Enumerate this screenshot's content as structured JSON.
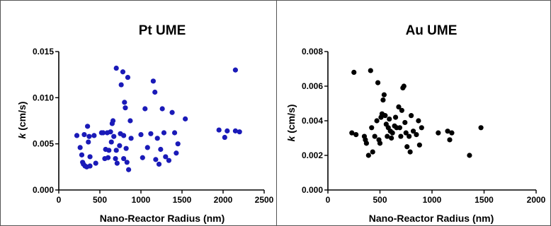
{
  "chart_data": [
    {
      "type": "scatter",
      "title": "Pt UME",
      "xlabel": "Nano-Reactor Radius (nm)",
      "ylabel_italic": "k",
      "ylabel_rest": " (cm/s)",
      "xlim": [
        0,
        2500
      ],
      "ylim": [
        0,
        0.015
      ],
      "xticks": [
        0,
        500,
        1000,
        1500,
        2000,
        2500
      ],
      "xtick_labels": [
        "0",
        "500",
        "1000",
        "1500",
        "2000",
        "2500"
      ],
      "yticks": [
        0,
        0.005,
        0.01,
        0.015
      ],
      "ytick_labels": [
        "0.000",
        "0.005",
        "0.010",
        "0.015"
      ],
      "marker_color": "#1a1ab8",
      "points": [
        {
          "x": 220,
          "y": 0.0059
        },
        {
          "x": 260,
          "y": 0.0046
        },
        {
          "x": 280,
          "y": 0.0038
        },
        {
          "x": 290,
          "y": 0.003
        },
        {
          "x": 300,
          "y": 0.0028
        },
        {
          "x": 310,
          "y": 0.006
        },
        {
          "x": 320,
          "y": 0.0026
        },
        {
          "x": 340,
          "y": 0.0025
        },
        {
          "x": 350,
          "y": 0.0069
        },
        {
          "x": 360,
          "y": 0.0052
        },
        {
          "x": 370,
          "y": 0.0058
        },
        {
          "x": 380,
          "y": 0.0036
        },
        {
          "x": 380,
          "y": 0.0026
        },
        {
          "x": 430,
          "y": 0.0059
        },
        {
          "x": 450,
          "y": 0.0029
        },
        {
          "x": 520,
          "y": 0.0062
        },
        {
          "x": 540,
          "y": 0.0062
        },
        {
          "x": 560,
          "y": 0.0034
        },
        {
          "x": 570,
          "y": 0.0044
        },
        {
          "x": 590,
          "y": 0.0062
        },
        {
          "x": 600,
          "y": 0.0035
        },
        {
          "x": 610,
          "y": 0.0043
        },
        {
          "x": 630,
          "y": 0.0063
        },
        {
          "x": 640,
          "y": 0.0052
        },
        {
          "x": 650,
          "y": 0.0072
        },
        {
          "x": 660,
          "y": 0.0075
        },
        {
          "x": 670,
          "y": 0.0058
        },
        {
          "x": 690,
          "y": 0.0034
        },
        {
          "x": 700,
          "y": 0.0043
        },
        {
          "x": 700,
          "y": 0.0132
        },
        {
          "x": 710,
          "y": 0.0029
        },
        {
          "x": 740,
          "y": 0.0048
        },
        {
          "x": 750,
          "y": 0.0061
        },
        {
          "x": 760,
          "y": 0.0114
        },
        {
          "x": 780,
          "y": 0.0128
        },
        {
          "x": 790,
          "y": 0.0059
        },
        {
          "x": 790,
          "y": 0.0034
        },
        {
          "x": 800,
          "y": 0.0095
        },
        {
          "x": 810,
          "y": 0.0089
        },
        {
          "x": 820,
          "y": 0.0045
        },
        {
          "x": 830,
          "y": 0.003
        },
        {
          "x": 840,
          "y": 0.0122
        },
        {
          "x": 850,
          "y": 0.0022
        },
        {
          "x": 870,
          "y": 0.0075
        },
        {
          "x": 880,
          "y": 0.0056
        },
        {
          "x": 1000,
          "y": 0.006
        },
        {
          "x": 1020,
          "y": 0.0035
        },
        {
          "x": 1050,
          "y": 0.0088
        },
        {
          "x": 1080,
          "y": 0.0046
        },
        {
          "x": 1120,
          "y": 0.0061
        },
        {
          "x": 1150,
          "y": 0.0118
        },
        {
          "x": 1170,
          "y": 0.0106
        },
        {
          "x": 1180,
          "y": 0.0033
        },
        {
          "x": 1200,
          "y": 0.0056
        },
        {
          "x": 1220,
          "y": 0.0028
        },
        {
          "x": 1240,
          "y": 0.0044
        },
        {
          "x": 1260,
          "y": 0.0088
        },
        {
          "x": 1280,
          "y": 0.0062
        },
        {
          "x": 1300,
          "y": 0.0036
        },
        {
          "x": 1340,
          "y": 0.0032
        },
        {
          "x": 1380,
          "y": 0.0084
        },
        {
          "x": 1410,
          "y": 0.0062
        },
        {
          "x": 1430,
          "y": 0.004
        },
        {
          "x": 1450,
          "y": 0.005
        },
        {
          "x": 1540,
          "y": 0.0077
        },
        {
          "x": 1950,
          "y": 0.0065
        },
        {
          "x": 2020,
          "y": 0.0057
        },
        {
          "x": 2050,
          "y": 0.0064
        },
        {
          "x": 2150,
          "y": 0.013
        },
        {
          "x": 2150,
          "y": 0.0064
        },
        {
          "x": 2200,
          "y": 0.0063
        }
      ]
    },
    {
      "type": "scatter",
      "title": "Au UME",
      "xlabel": "Nano-Reactor Radius (nm)",
      "ylabel_italic": "k",
      "ylabel_rest": " (cm/s)",
      "xlim": [
        0,
        2000
      ],
      "ylim": [
        0,
        0.008
      ],
      "xticks": [
        0,
        500,
        1000,
        1500,
        2000
      ],
      "xtick_labels": [
        "0",
        "500",
        "1000",
        "1500",
        "2000"
      ],
      "yticks": [
        0,
        0.002,
        0.004,
        0.006,
        0.008
      ],
      "ytick_labels": [
        "0.000",
        "0.002",
        "0.004",
        "0.006",
        "0.008"
      ],
      "marker_color": "#000000",
      "points": [
        {
          "x": 230,
          "y": 0.0033
        },
        {
          "x": 250,
          "y": 0.0068
        },
        {
          "x": 270,
          "y": 0.0032
        },
        {
          "x": 350,
          "y": 0.0031
        },
        {
          "x": 360,
          "y": 0.0029
        },
        {
          "x": 370,
          "y": 0.0027
        },
        {
          "x": 390,
          "y": 0.002
        },
        {
          "x": 410,
          "y": 0.0069
        },
        {
          "x": 420,
          "y": 0.0036
        },
        {
          "x": 430,
          "y": 0.0022
        },
        {
          "x": 450,
          "y": 0.0031
        },
        {
          "x": 470,
          "y": 0.004
        },
        {
          "x": 480,
          "y": 0.0062
        },
        {
          "x": 490,
          "y": 0.0029
        },
        {
          "x": 500,
          "y": 0.0027
        },
        {
          "x": 510,
          "y": 0.0042
        },
        {
          "x": 520,
          "y": 0.0044
        },
        {
          "x": 530,
          "y": 0.0052
        },
        {
          "x": 540,
          "y": 0.0055
        },
        {
          "x": 550,
          "y": 0.0043
        },
        {
          "x": 560,
          "y": 0.0038
        },
        {
          "x": 570,
          "y": 0.0031
        },
        {
          "x": 580,
          "y": 0.0036
        },
        {
          "x": 590,
          "y": 0.0041
        },
        {
          "x": 600,
          "y": 0.0034
        },
        {
          "x": 610,
          "y": 0.003
        },
        {
          "x": 620,
          "y": 0.0033
        },
        {
          "x": 640,
          "y": 0.0037
        },
        {
          "x": 650,
          "y": 0.0042
        },
        {
          "x": 660,
          "y": 0.0036
        },
        {
          "x": 680,
          "y": 0.0048
        },
        {
          "x": 690,
          "y": 0.0036
        },
        {
          "x": 700,
          "y": 0.0031
        },
        {
          "x": 710,
          "y": 0.0046
        },
        {
          "x": 720,
          "y": 0.0059
        },
        {
          "x": 730,
          "y": 0.006
        },
        {
          "x": 740,
          "y": 0.0039
        },
        {
          "x": 750,
          "y": 0.0033
        },
        {
          "x": 760,
          "y": 0.0025
        },
        {
          "x": 780,
          "y": 0.0031
        },
        {
          "x": 790,
          "y": 0.0022
        },
        {
          "x": 800,
          "y": 0.0043
        },
        {
          "x": 820,
          "y": 0.0034
        },
        {
          "x": 850,
          "y": 0.0032
        },
        {
          "x": 870,
          "y": 0.004
        },
        {
          "x": 880,
          "y": 0.0026
        },
        {
          "x": 900,
          "y": 0.0036
        },
        {
          "x": 1060,
          "y": 0.0033
        },
        {
          "x": 1150,
          "y": 0.0034
        },
        {
          "x": 1170,
          "y": 0.0029
        },
        {
          "x": 1190,
          "y": 0.0033
        },
        {
          "x": 1360,
          "y": 0.002
        },
        {
          "x": 1470,
          "y": 0.0036
        }
      ]
    }
  ]
}
